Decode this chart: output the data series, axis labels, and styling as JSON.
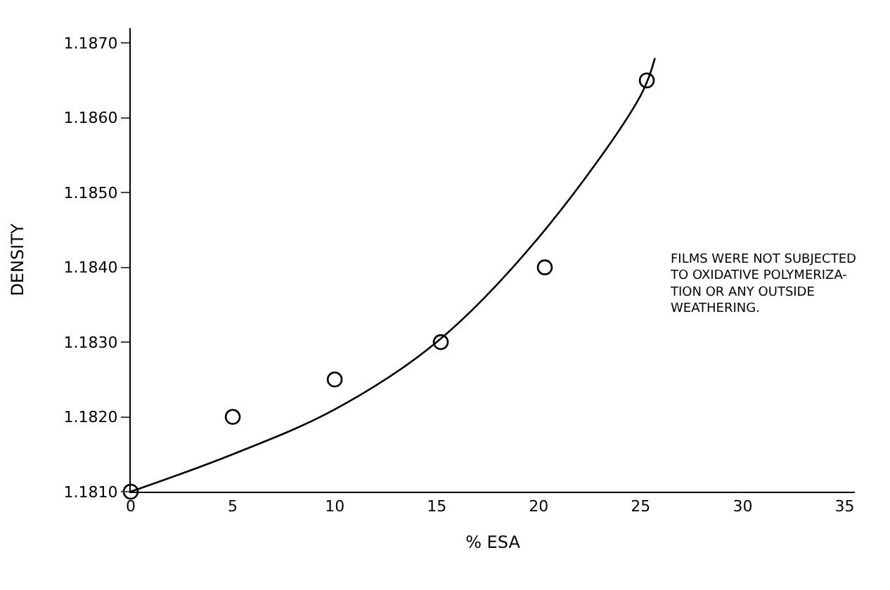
{
  "chart_data": {
    "type": "scatter",
    "xlabel": "% ESA",
    "ylabel": "DENSITY",
    "xlim": [
      0,
      35.5
    ],
    "ylim": [
      1.181,
      1.1872
    ],
    "xticks": [
      0,
      5,
      10,
      15,
      20,
      25,
      30,
      35
    ],
    "yticks": [
      {
        "value": 1.181,
        "label": "1.1810"
      },
      {
        "value": 1.182,
        "label": "1.1820"
      },
      {
        "value": 1.183,
        "label": "1.1830"
      },
      {
        "value": 1.184,
        "label": "1.1840"
      },
      {
        "value": 1.185,
        "label": "1.1850"
      },
      {
        "value": 1.186,
        "label": "1.1860"
      },
      {
        "value": 1.187,
        "label": "1.1870"
      }
    ],
    "marker": "circle",
    "series": [
      {
        "color": "#000000",
        "x": [
          0,
          5,
          10,
          15.2,
          20.3,
          25.3
        ],
        "values": [
          1.181,
          1.182,
          1.1825,
          1.183,
          1.184,
          1.1865
        ]
      },
      {
        "type": "line",
        "color": "#000000",
        "marker": "none",
        "line_style": "solid",
        "x": [
          0,
          5,
          10,
          15,
          20,
          25,
          25.7
        ],
        "values": [
          1.181,
          1.1815,
          1.1821,
          1.183,
          1.1844,
          1.1863,
          1.1868
        ]
      }
    ],
    "annotations": [
      "FILMS WERE NOT SUBJECTED\nTO OXIDATIVE POLYMERIZA-\nTION OR ANY OUTSIDE\nWEATHERING."
    ]
  }
}
